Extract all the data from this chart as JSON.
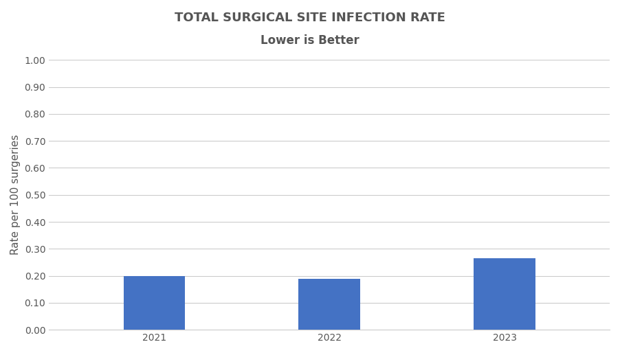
{
  "categories": [
    "2021",
    "2022",
    "2023"
  ],
  "values": [
    0.2,
    0.19,
    0.265
  ],
  "bar_color": "#4472C4",
  "title": "TOTAL SURGICAL SITE INFECTION RATE",
  "subtitle": "Lower is Better",
  "ylabel": "Rate per 100 surgeries",
  "ylim": [
    0.0,
    1.0
  ],
  "yticks": [
    0.0,
    0.1,
    0.2,
    0.3,
    0.4,
    0.5,
    0.6,
    0.7,
    0.8,
    0.9,
    1.0
  ],
  "title_fontsize": 13,
  "subtitle_fontsize": 12,
  "ylabel_fontsize": 11,
  "tick_fontsize": 10,
  "bar_width": 0.35,
  "background_color": "#ffffff",
  "grid_color": "#cccccc",
  "text_color": "#555555"
}
